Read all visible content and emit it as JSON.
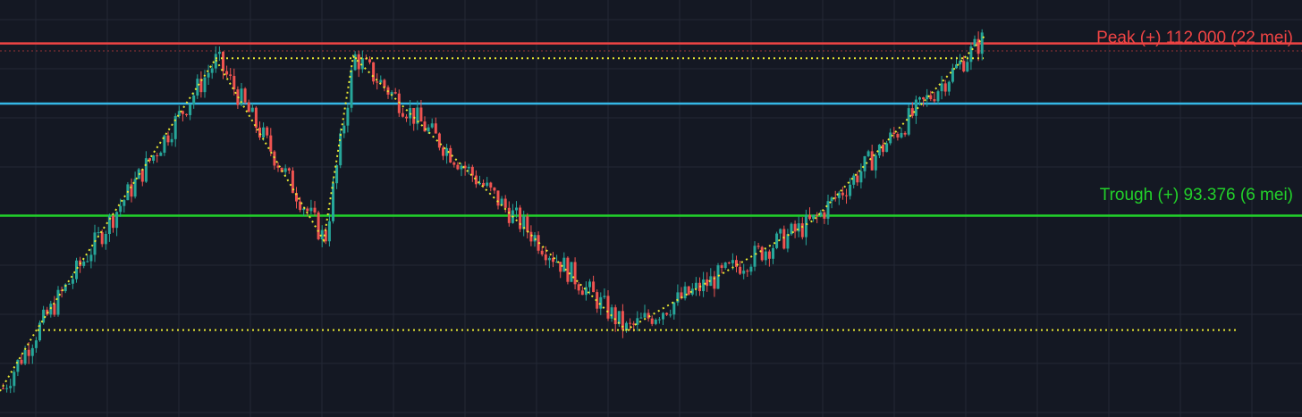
{
  "chart_data": {
    "type": "candlestick",
    "grid": true,
    "colors": {
      "background": "#141823",
      "grid": "#232836",
      "up": "#26a69a",
      "down": "#ef5350",
      "peak": "#ef4444",
      "trough": "#22d12a",
      "blue_level": "#35b7e6",
      "pattern": "#e8e832"
    },
    "levels": [
      {
        "name": "peak",
        "price": 112000,
        "label": "Peak (+) 112.000 (22 mei)"
      },
      {
        "name": "blue",
        "price": 105500,
        "label": ""
      },
      {
        "name": "trough",
        "price": 93376,
        "label": "Trough (+) 93.376 (6 mei)"
      }
    ],
    "level_peak_label": "Peak (+) 112.000 (22 mei)",
    "level_trough_label": "Trough (+) 93.376 (6 mei)",
    "candles_note": "",
    "pattern_points": [
      [
        0,
        74400
      ],
      [
        42,
        81200
      ],
      [
        241,
        110300
      ],
      [
        362,
        90700
      ],
      [
        395,
        110600
      ],
      [
        700,
        81000
      ],
      [
        910,
        92900
      ],
      [
        1103,
        113000
      ]
    ],
    "pattern_hlines": [
      {
        "price": 110400,
        "from": 241,
        "to": 1100
      },
      {
        "price": 81000,
        "from": 42,
        "to": 1382
      }
    ],
    "ylim": [
      71600,
      116700
    ]
  }
}
